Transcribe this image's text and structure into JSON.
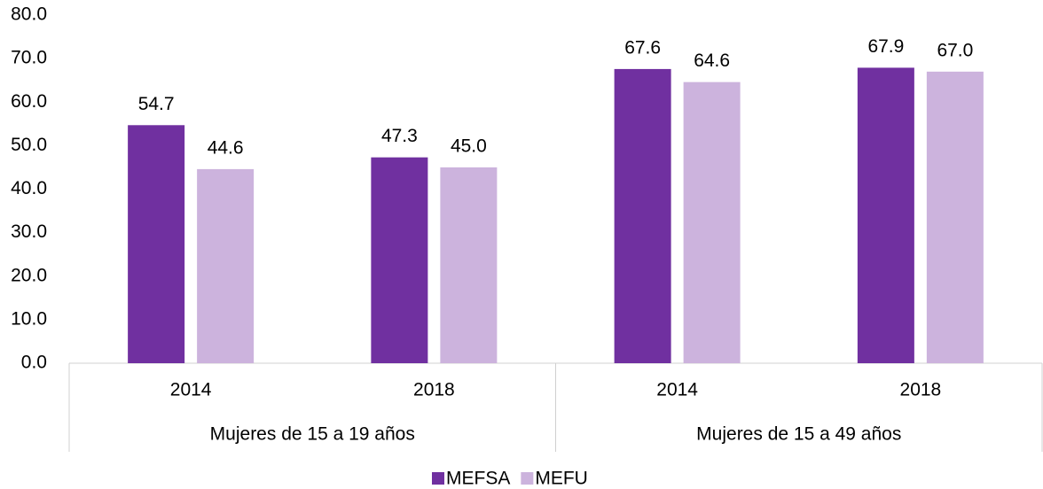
{
  "chart_data": {
    "type": "bar",
    "categories": [
      "2014",
      "2018",
      "2014",
      "2018"
    ],
    "groups": [
      "Mujeres de 15 a 19 años",
      "Mujeres de 15 a 49 años"
    ],
    "series": [
      {
        "name": "MEFSA",
        "color": "#7030a0",
        "values": [
          54.7,
          47.3,
          67.6,
          67.9
        ],
        "value_labels": [
          "54.7",
          "47.3",
          "67.6",
          "67.9"
        ]
      },
      {
        "name": "MEFU",
        "color": "#ccb3dd",
        "values": [
          44.6,
          45.0,
          64.6,
          67.0
        ],
        "value_labels": [
          "44.6",
          "45.0",
          "64.6",
          "67.0"
        ]
      }
    ],
    "ylim": [
      0,
      80
    ],
    "yticks": [
      {
        "value": 0,
        "label": "0.0"
      },
      {
        "value": 10,
        "label": "10.0"
      },
      {
        "value": 20,
        "label": "20.0"
      },
      {
        "value": 30,
        "label": "30.0"
      },
      {
        "value": 40,
        "label": "40.0"
      },
      {
        "value": 50,
        "label": "50.0"
      },
      {
        "value": 60,
        "label": "60.0"
      },
      {
        "value": 70,
        "label": "70.0"
      },
      {
        "value": 80,
        "label": "80.0"
      }
    ],
    "grid": false,
    "legend": "bottom"
  }
}
